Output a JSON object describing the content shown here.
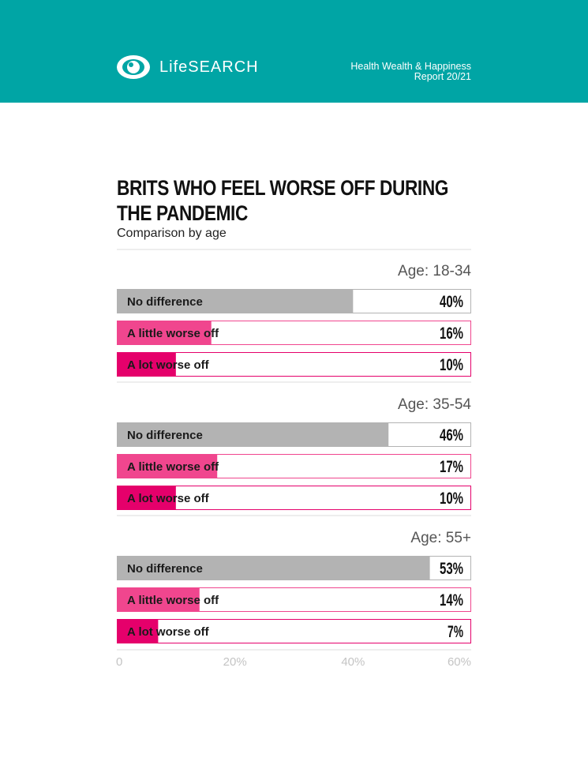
{
  "header": {
    "brand": "LifeSEARCH",
    "report_line1": "Health Wealth & Happiness",
    "report_line2": "Report 20/21"
  },
  "colors": {
    "header_bg": "#00a5a5",
    "no_difference": "#b3b3b3",
    "a_little_worse_off": "#f0468e",
    "a_lot_worse_off": "#e5006b"
  },
  "chart_data": {
    "type": "bar",
    "title": "BRITS WHO FEEL WORSE OFF DURING THE PANDEMIC",
    "subtitle": "Comparison by age",
    "xlim": [
      0,
      60
    ],
    "xticks": [
      "0",
      "20%",
      "40%",
      "60%"
    ],
    "tick_values": [
      0,
      20,
      40,
      60
    ],
    "categories": [
      "No difference",
      "A little worse off",
      "A lot worse off"
    ],
    "groups": [
      {
        "label": "Age: 18-34",
        "values": [
          40,
          16,
          10
        ],
        "value_labels": [
          "40%",
          "16%",
          "10%"
        ]
      },
      {
        "label": "Age: 35-54",
        "values": [
          46,
          17,
          10
        ],
        "value_labels": [
          "46%",
          "17%",
          "10%"
        ]
      },
      {
        "label": "Age: 55+",
        "values": [
          53,
          14,
          7
        ],
        "value_labels": [
          "53%",
          "14%",
          "7%"
        ]
      }
    ]
  }
}
